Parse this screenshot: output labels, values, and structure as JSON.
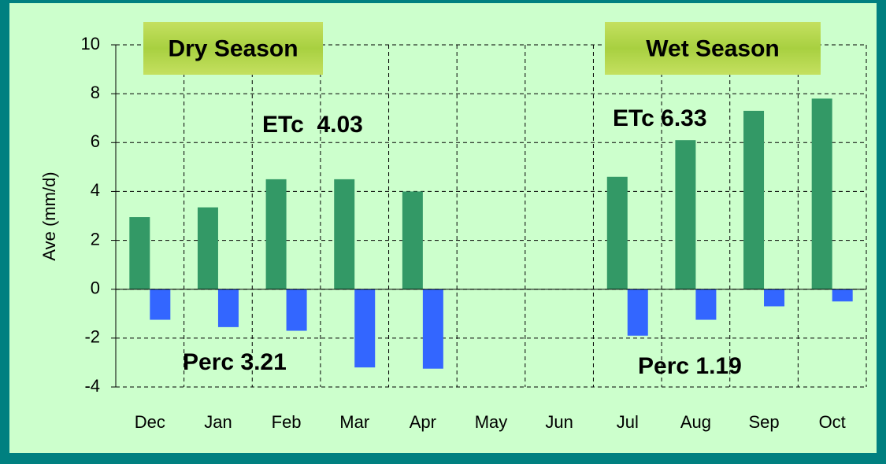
{
  "chart_data": {
    "type": "bar",
    "y_label": "Ave (mm/d)",
    "categories": [
      "Dec",
      "Jan",
      "Feb",
      "Mar",
      "Apr",
      "May",
      "Jun",
      "Jul",
      "Aug",
      "Sep",
      "Oct"
    ],
    "series": [
      {
        "color": "#339966",
        "values": [
          2.95,
          3.35,
          4.5,
          4.5,
          4.0,
          null,
          null,
          4.6,
          6.1,
          7.3,
          7.8
        ]
      },
      {
        "color": "#3366ff",
        "values": [
          -1.25,
          -1.55,
          -1.7,
          -3.2,
          -3.25,
          null,
          null,
          -1.9,
          -1.25,
          -0.7,
          -0.5
        ]
      }
    ],
    "ylim": [
      -4,
      10
    ],
    "yticks": [
      -4,
      -2,
      0,
      2,
      4,
      6,
      8,
      10
    ],
    "grid": true,
    "annotations": [
      {
        "text": "Dry Season",
        "boxed": true
      },
      {
        "text": "Wet Season",
        "boxed": true
      },
      {
        "text": "ETc  4.03"
      },
      {
        "text": "Perc 3.21"
      },
      {
        "text": "ETc 6.33"
      },
      {
        "text": "Perc 1.19"
      }
    ]
  }
}
